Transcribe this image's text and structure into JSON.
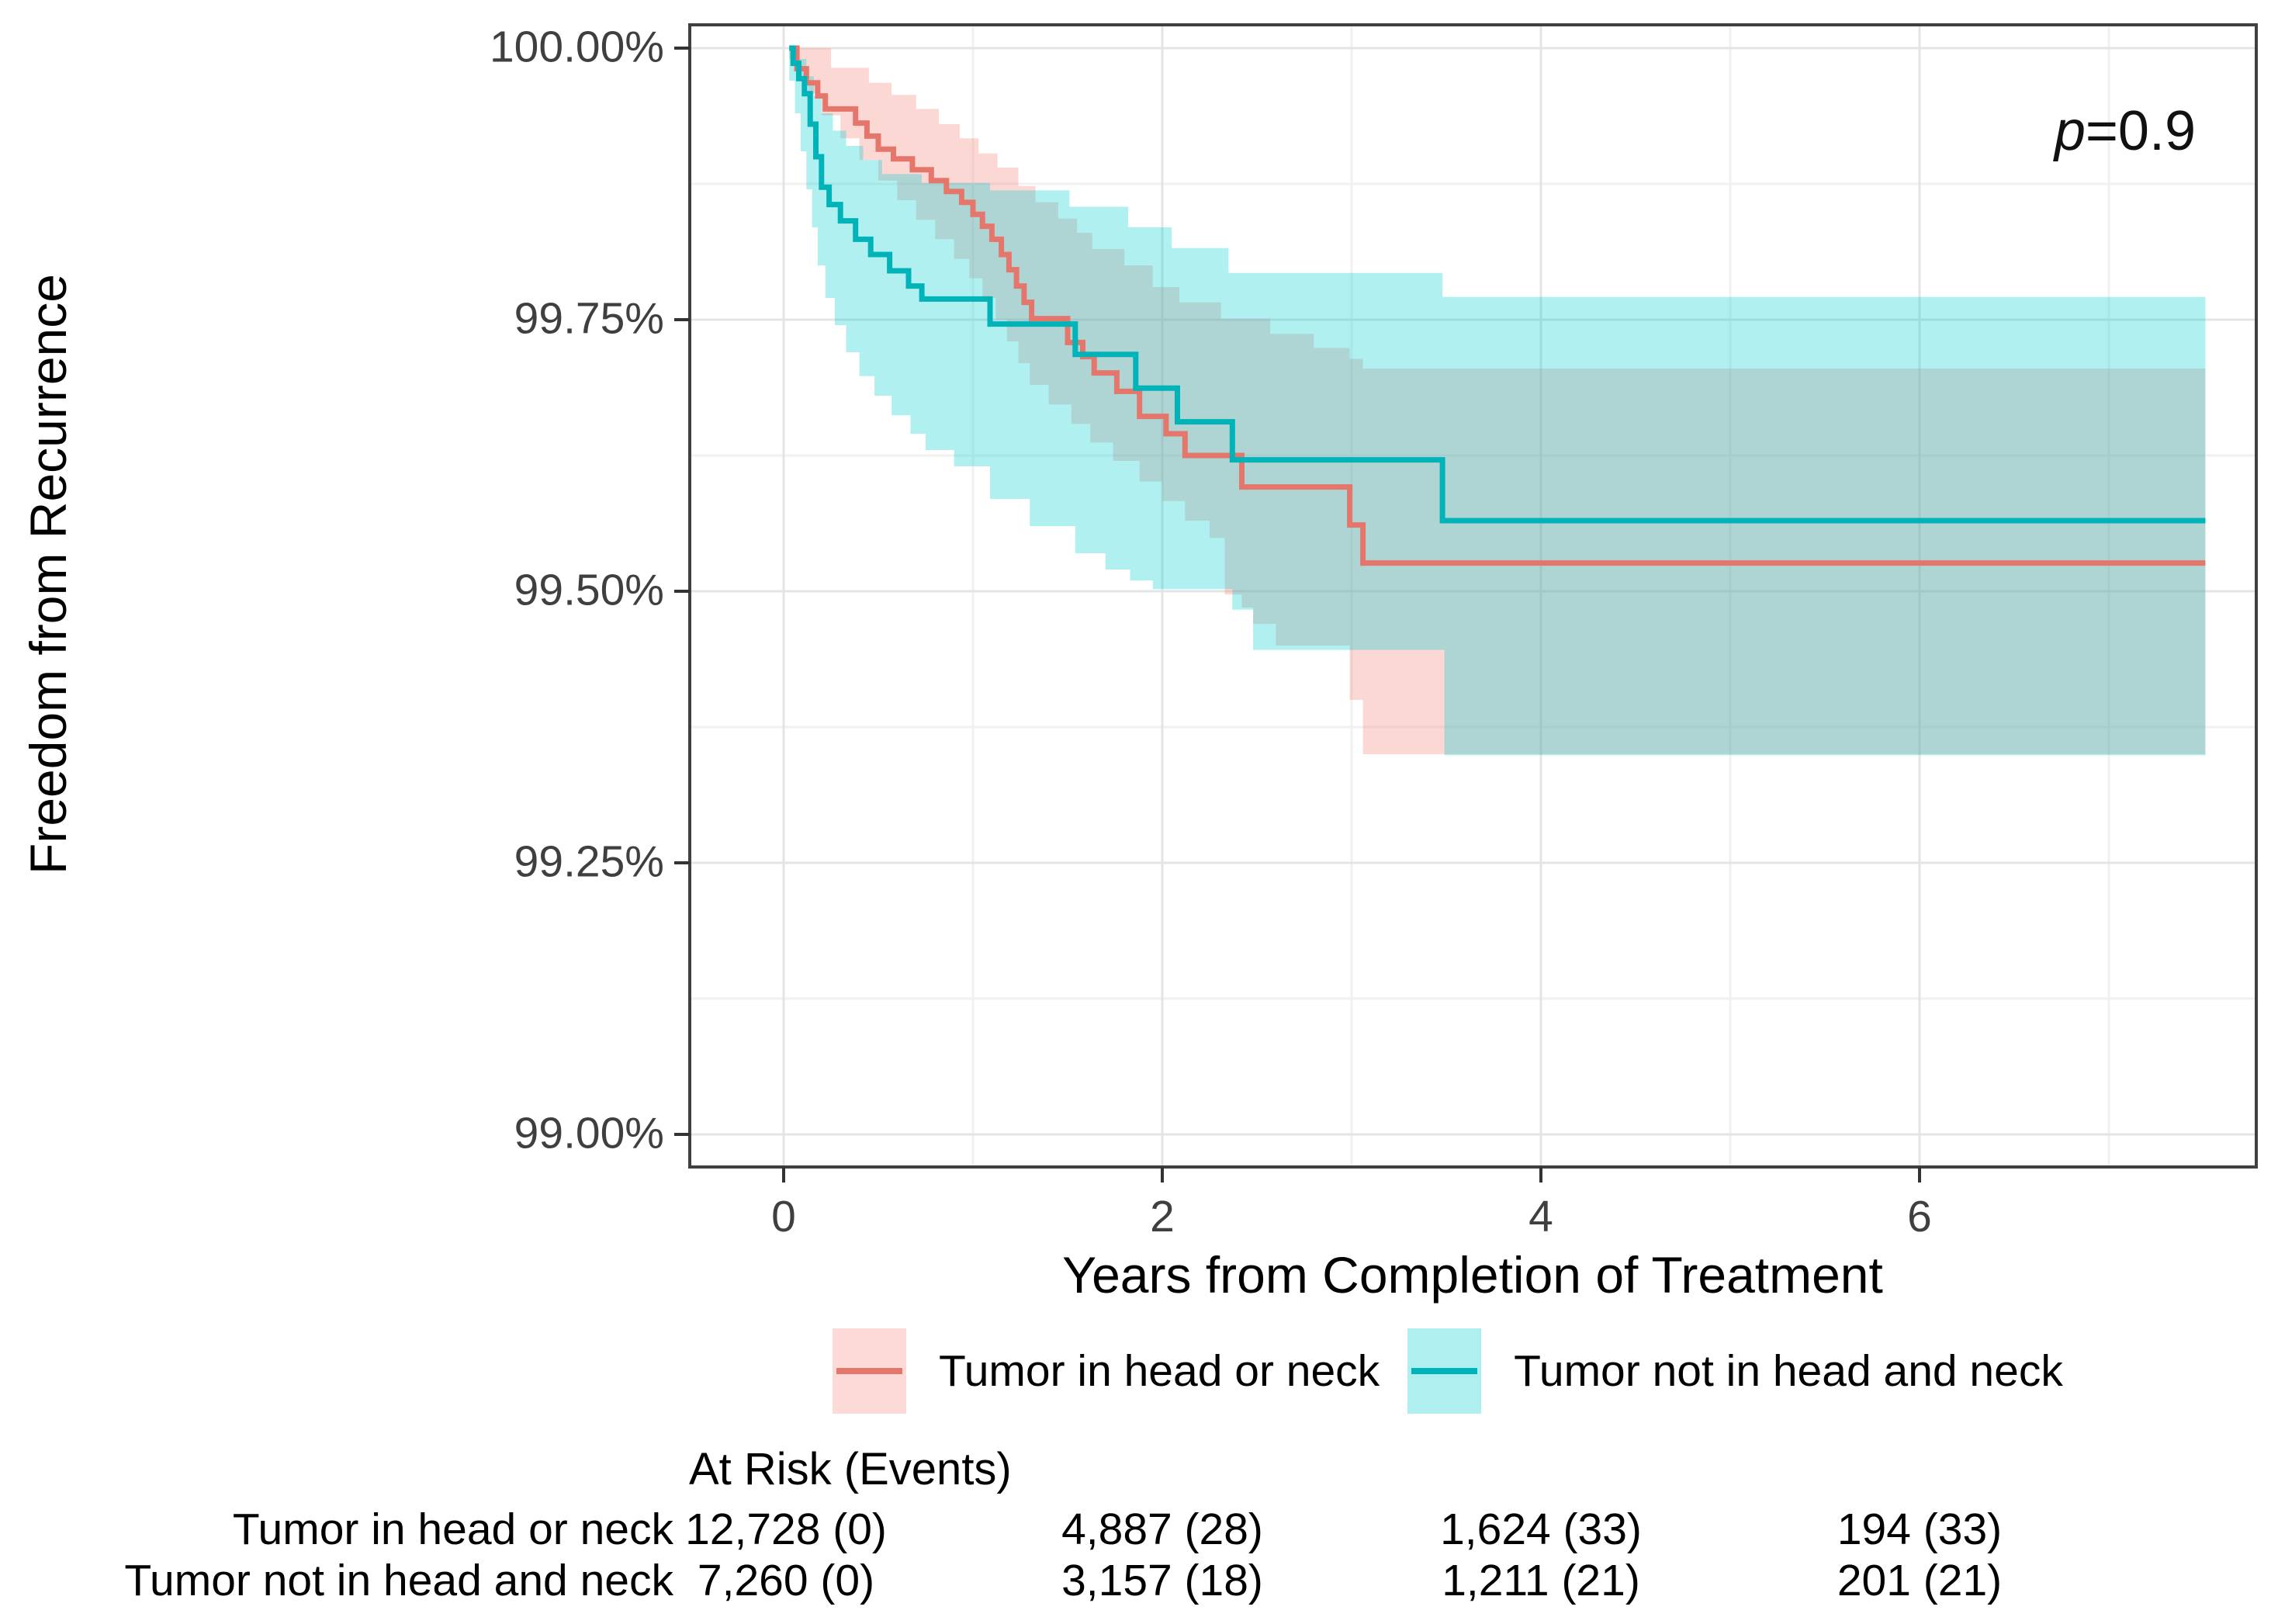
{
  "axes": {
    "y_title": "Freedom from Recurrence",
    "x_title": "Years from Completion of Treatment",
    "y_tick_labels": [
      "100.00%",
      "99.75%",
      "99.50%",
      "99.25%",
      "99.00%"
    ],
    "x_tick_labels": [
      "0",
      "2",
      "4",
      "6"
    ]
  },
  "annotation": {
    "p_italic": "p",
    "p_value": "=0.9"
  },
  "legend": {
    "items": [
      {
        "label": "Tumor in head or neck",
        "line_color": "#e5766c",
        "fill_color": "#fbdad7"
      },
      {
        "label": "Tumor not in head and neck",
        "line_color": "#00b3b9",
        "fill_color": "#b0eff0"
      }
    ]
  },
  "at_risk": {
    "header": "At Risk (Events)",
    "rows": [
      {
        "label": "Tumor in head or neck",
        "values": [
          "12,728 (0)",
          "4,887 (28)",
          "1,624 (33)",
          "194 (33)"
        ]
      },
      {
        "label": "Tumor not in head and neck",
        "values": [
          "7,260 (0)",
          "3,157 (18)",
          "1,211 (21)",
          "201 (21)"
        ]
      }
    ]
  },
  "colors": {
    "red_line": "#e5766c",
    "teal_line": "#00b3b9",
    "red_band": "rgba(244,120,109,0.29)",
    "teal_band": "rgba(0,205,210,0.31)",
    "grid_major": "#e4e4e4",
    "grid_minor": "#f1f1f1",
    "panel_border": "#404040",
    "tick_mark": "#333333"
  },
  "chart_data": {
    "type": "line",
    "subtype": "kaplan-meier-step-with-ci",
    "title": "",
    "xlabel": "Years from Completion of Treatment",
    "ylabel": "Freedom from Recurrence",
    "annotation": "p=0.9",
    "grid": "major+minor",
    "legend_position": "bottom",
    "xlim": [
      -0.5,
      7.78
    ],
    "ylim": [
      98.97,
      100.02
    ],
    "x_ticks": [
      0,
      2,
      4,
      6
    ],
    "x_minor": [
      1,
      3,
      5,
      7
    ],
    "y_ticks": [
      100,
      99.75,
      99.5,
      99.25,
      99
    ],
    "y_minor": [
      99.875,
      99.625,
      99.375,
      99.125
    ],
    "end_t": 7.51,
    "series": [
      {
        "name": "Tumor in head or neck",
        "steps": [
          [
            0.03,
            100
          ],
          [
            0.07,
            99.981
          ],
          [
            0.12,
            99.968
          ],
          [
            0.18,
            99.956
          ],
          [
            0.22,
            99.944
          ],
          [
            0.38,
            99.931
          ],
          [
            0.44,
            99.919
          ],
          [
            0.5,
            99.907
          ],
          [
            0.58,
            99.898
          ],
          [
            0.68,
            99.888
          ],
          [
            0.78,
            99.878
          ],
          [
            0.86,
            99.868
          ],
          [
            0.94,
            99.858
          ],
          [
            1.0,
            99.847
          ],
          [
            1.05,
            99.836
          ],
          [
            1.1,
            99.824
          ],
          [
            1.15,
            99.81
          ],
          [
            1.19,
            99.796
          ],
          [
            1.23,
            99.781
          ],
          [
            1.27,
            99.766
          ],
          [
            1.31,
            99.751
          ],
          [
            1.5,
            99.729
          ],
          [
            1.58,
            99.716
          ],
          [
            1.64,
            99.701
          ],
          [
            1.76,
            99.684
          ],
          [
            1.88,
            99.661
          ],
          [
            2.02,
            99.645
          ],
          [
            2.12,
            99.625
          ],
          [
            2.42,
            99.596
          ],
          [
            2.99,
            99.561
          ],
          [
            3.06,
            99.526
          ]
        ],
        "ci_upper": [
          [
            0.03,
            100
          ],
          [
            0.25,
            99.982
          ],
          [
            0.45,
            99.968
          ],
          [
            0.57,
            99.957
          ],
          [
            0.7,
            99.944
          ],
          [
            0.82,
            99.93
          ],
          [
            0.93,
            99.917
          ],
          [
            1.03,
            99.903
          ],
          [
            1.13,
            99.89
          ],
          [
            1.24,
            99.873
          ],
          [
            1.33,
            99.858
          ],
          [
            1.45,
            99.843
          ],
          [
            1.55,
            99.83
          ],
          [
            1.63,
            99.815
          ],
          [
            1.8,
            99.8
          ],
          [
            1.95,
            99.78
          ],
          [
            2.09,
            99.766
          ],
          [
            2.31,
            99.751
          ],
          [
            2.57,
            99.737
          ],
          [
            2.8,
            99.724
          ],
          [
            2.99,
            99.714
          ],
          [
            3.06,
            99.705
          ]
        ],
        "ci_lower": [
          [
            0.03,
            99.99
          ],
          [
            0.08,
            99.975
          ],
          [
            0.13,
            99.958
          ],
          [
            0.2,
            99.938
          ],
          [
            0.3,
            99.917
          ],
          [
            0.4,
            99.897
          ],
          [
            0.5,
            99.878
          ],
          [
            0.6,
            99.86
          ],
          [
            0.7,
            99.842
          ],
          [
            0.8,
            99.824
          ],
          [
            0.9,
            99.806
          ],
          [
            0.98,
            99.788
          ],
          [
            1.05,
            99.77
          ],
          [
            1.12,
            99.75
          ],
          [
            1.18,
            99.73
          ],
          [
            1.24,
            99.71
          ],
          [
            1.3,
            99.69
          ],
          [
            1.4,
            99.672
          ],
          [
            1.52,
            99.654
          ],
          [
            1.62,
            99.637
          ],
          [
            1.74,
            99.62
          ],
          [
            1.88,
            99.601
          ],
          [
            2.0,
            99.583
          ],
          [
            2.12,
            99.565
          ],
          [
            2.25,
            99.549
          ],
          [
            2.33,
            99.497
          ],
          [
            2.42,
            99.485
          ],
          [
            2.48,
            99.47
          ],
          [
            2.6,
            99.45
          ],
          [
            2.99,
            99.4
          ],
          [
            3.06,
            99.35
          ]
        ]
      },
      {
        "name": "Tumor not in head and neck",
        "steps": [
          [
            0.03,
            100
          ],
          [
            0.05,
            99.986
          ],
          [
            0.08,
            99.972
          ],
          [
            0.11,
            99.958
          ],
          [
            0.14,
            99.93
          ],
          [
            0.17,
            99.9
          ],
          [
            0.2,
            99.872
          ],
          [
            0.24,
            99.856
          ],
          [
            0.3,
            99.841
          ],
          [
            0.38,
            99.824
          ],
          [
            0.46,
            99.81
          ],
          [
            0.56,
            99.795
          ],
          [
            0.66,
            99.781
          ],
          [
            0.73,
            99.769
          ],
          [
            1.09,
            99.746
          ],
          [
            1.54,
            99.718
          ],
          [
            1.86,
            99.687
          ],
          [
            2.08,
            99.656
          ],
          [
            2.37,
            99.621
          ],
          [
            3.48,
            99.565
          ]
        ],
        "ci_upper": [
          [
            0.03,
            100
          ],
          [
            0.07,
            99.99
          ],
          [
            0.12,
            99.974
          ],
          [
            0.16,
            99.956
          ],
          [
            0.2,
            99.94
          ],
          [
            0.26,
            99.924
          ],
          [
            0.33,
            99.91
          ],
          [
            0.42,
            99.897
          ],
          [
            0.52,
            99.884
          ],
          [
            0.73,
            99.876
          ],
          [
            1.09,
            99.869
          ],
          [
            1.51,
            99.854
          ],
          [
            1.82,
            99.835
          ],
          [
            2.05,
            99.816
          ],
          [
            2.35,
            99.793
          ],
          [
            3.48,
            99.771
          ]
        ],
        "ci_lower": [
          [
            0.03,
            99.97
          ],
          [
            0.06,
            99.94
          ],
          [
            0.09,
            99.905
          ],
          [
            0.12,
            99.87
          ],
          [
            0.15,
            99.835
          ],
          [
            0.18,
            99.8
          ],
          [
            0.22,
            99.77
          ],
          [
            0.27,
            99.745
          ],
          [
            0.33,
            99.72
          ],
          [
            0.4,
            99.698
          ],
          [
            0.48,
            99.68
          ],
          [
            0.57,
            99.662
          ],
          [
            0.67,
            99.645
          ],
          [
            0.75,
            99.63
          ],
          [
            0.9,
            99.615
          ],
          [
            1.09,
            99.585
          ],
          [
            1.3,
            99.56
          ],
          [
            1.54,
            99.535
          ],
          [
            1.7,
            99.52
          ],
          [
            1.83,
            99.51
          ],
          [
            1.95,
            99.502
          ],
          [
            2.37,
            99.483
          ],
          [
            2.48,
            99.446
          ],
          [
            3.49,
            99.349
          ]
        ]
      }
    ]
  }
}
